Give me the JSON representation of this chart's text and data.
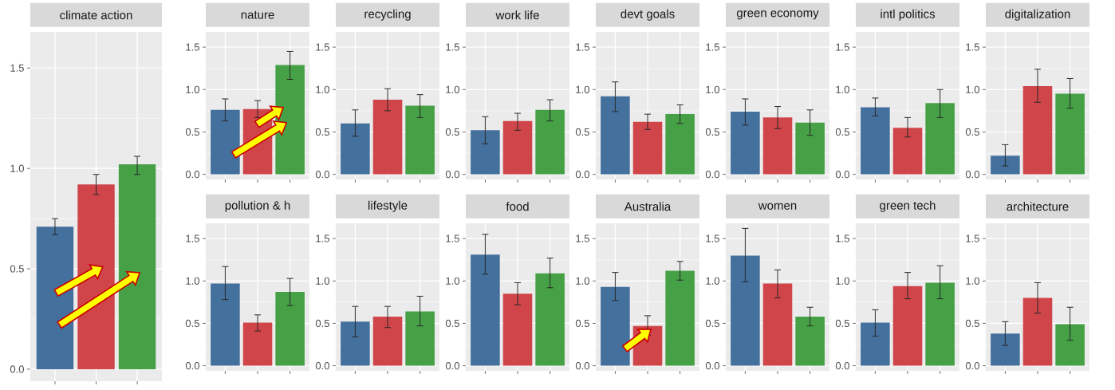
{
  "chart_data": [
    {
      "type": "bar",
      "title": "climate action",
      "categories": [
        null,
        null,
        null
      ],
      "values": [
        0.71,
        0.92,
        1.02
      ],
      "colors": [
        "#44709e",
        "#d0454a",
        "#46a046"
      ],
      "errors": [
        [
          0.67,
          0.75
        ],
        [
          0.87,
          0.97
        ],
        [
          0.97,
          1.06
        ]
      ],
      "ylim": [
        -0.06,
        1.68
      ],
      "yticks": [
        {
          "value": 0,
          "label": "0.0"
        },
        {
          "value": 0.5,
          "label": "0.5"
        },
        {
          "value": 1,
          "label": "1.0"
        },
        {
          "value": 1.5,
          "label": "1.5"
        }
      ],
      "grid": true,
      "tick_labels": "y"
    },
    {
      "type": "bar",
      "title": "nature",
      "categories": [
        null,
        null,
        null
      ],
      "values": [
        0.76,
        0.77,
        1.29
      ],
      "colors": [
        "#44709e",
        "#d0454a",
        "#46a046"
      ],
      "errors": [
        [
          0.63,
          0.89
        ],
        [
          0.67,
          0.87
        ],
        [
          1.12,
          1.45
        ]
      ],
      "ylim": [
        -0.06,
        1.68
      ],
      "yticks": [
        {
          "value": 0,
          "label": "0.0"
        },
        {
          "value": 0.5,
          "label": "0.5"
        },
        {
          "value": 1,
          "label": "1.0"
        },
        {
          "value": 1.5,
          "label": "1.5"
        }
      ],
      "grid": true,
      "tick_labels": "y"
    },
    {
      "type": "bar",
      "title": "recycling",
      "categories": [
        null,
        null,
        null
      ],
      "values": [
        0.6,
        0.88,
        0.81
      ],
      "colors": [
        "#44709e",
        "#d0454a",
        "#46a046"
      ],
      "errors": [
        [
          0.45,
          0.76
        ],
        [
          0.75,
          1.01
        ],
        [
          0.67,
          0.94
        ]
      ],
      "ylim": [
        -0.06,
        1.68
      ],
      "yticks": [
        {
          "value": 0,
          "label": "0.0"
        },
        {
          "value": 0.5,
          "label": "0.5"
        },
        {
          "value": 1,
          "label": "1.0"
        },
        {
          "value": 1.5,
          "label": "1.5"
        }
      ],
      "grid": true,
      "tick_labels": "y"
    },
    {
      "type": "bar",
      "title": "work life",
      "categories": [
        null,
        null,
        null
      ],
      "values": [
        0.52,
        0.63,
        0.76
      ],
      "colors": [
        "#44709e",
        "#d0454a",
        "#46a046"
      ],
      "errors": [
        [
          0.36,
          0.68
        ],
        [
          0.52,
          0.72
        ],
        [
          0.63,
          0.88
        ]
      ],
      "ylim": [
        -0.06,
        1.68
      ],
      "yticks": [
        {
          "value": 0,
          "label": "0.0"
        },
        {
          "value": 0.5,
          "label": "0.5"
        },
        {
          "value": 1,
          "label": "1.0"
        },
        {
          "value": 1.5,
          "label": "1.5"
        }
      ],
      "grid": true,
      "tick_labels": "y"
    },
    {
      "type": "bar",
      "title": "devt goals",
      "categories": [
        null,
        null,
        null
      ],
      "values": [
        0.92,
        0.62,
        0.71
      ],
      "colors": [
        "#44709e",
        "#d0454a",
        "#46a046"
      ],
      "errors": [
        [
          0.74,
          1.09
        ],
        [
          0.53,
          0.71
        ],
        [
          0.6,
          0.82
        ]
      ],
      "ylim": [
        -0.06,
        1.68
      ],
      "yticks": [
        {
          "value": 0,
          "label": "0.0"
        },
        {
          "value": 0.5,
          "label": "0.5"
        },
        {
          "value": 1,
          "label": "1.0"
        },
        {
          "value": 1.5,
          "label": "1.5"
        }
      ],
      "grid": true,
      "tick_labels": "y"
    },
    {
      "type": "bar",
      "title": "green economy",
      "categories": [
        null,
        null,
        null
      ],
      "values": [
        0.74,
        0.67,
        0.61
      ],
      "colors": [
        "#44709e",
        "#d0454a",
        "#46a046"
      ],
      "errors": [
        [
          0.58,
          0.89
        ],
        [
          0.54,
          0.8
        ],
        [
          0.46,
          0.76
        ]
      ],
      "ylim": [
        -0.06,
        1.68
      ],
      "yticks": [
        {
          "value": 0,
          "label": "0.0"
        },
        {
          "value": 0.5,
          "label": "0.5"
        },
        {
          "value": 1,
          "label": "1.0"
        },
        {
          "value": 1.5,
          "label": "1.5"
        }
      ],
      "grid": true,
      "tick_labels": "y"
    },
    {
      "type": "bar",
      "title": "intl politics",
      "categories": [
        null,
        null,
        null
      ],
      "values": [
        0.79,
        0.55,
        0.84
      ],
      "colors": [
        "#44709e",
        "#d0454a",
        "#46a046"
      ],
      "errors": [
        [
          0.69,
          0.9
        ],
        [
          0.44,
          0.67
        ],
        [
          0.67,
          1.0
        ]
      ],
      "ylim": [
        -0.06,
        1.68
      ],
      "yticks": [
        {
          "value": 0,
          "label": "0.0"
        },
        {
          "value": 0.5,
          "label": "0.5"
        },
        {
          "value": 1,
          "label": "1.0"
        },
        {
          "value": 1.5,
          "label": "1.5"
        }
      ],
      "grid": true,
      "tick_labels": "y"
    },
    {
      "type": "bar",
      "title": "digitalization",
      "categories": [
        null,
        null,
        null
      ],
      "values": [
        0.22,
        1.04,
        0.95
      ],
      "colors": [
        "#44709e",
        "#d0454a",
        "#46a046"
      ],
      "errors": [
        [
          0.1,
          0.35
        ],
        [
          0.85,
          1.24
        ],
        [
          0.78,
          1.13
        ]
      ],
      "ylim": [
        -0.06,
        1.68
      ],
      "yticks": [
        {
          "value": 0,
          "label": "0.0"
        },
        {
          "value": 0.5,
          "label": "0.5"
        },
        {
          "value": 1,
          "label": "1.0"
        },
        {
          "value": 1.5,
          "label": "1.5"
        }
      ],
      "grid": true,
      "tick_labels": "y"
    },
    {
      "type": "bar",
      "title": "pollution & h",
      "categories": [
        null,
        null,
        null
      ],
      "values": [
        0.97,
        0.51,
        0.87
      ],
      "colors": [
        "#44709e",
        "#d0454a",
        "#46a046"
      ],
      "errors": [
        [
          0.78,
          1.17
        ],
        [
          0.41,
          0.6
        ],
        [
          0.71,
          1.03
        ]
      ],
      "ylim": [
        -0.06,
        1.68
      ],
      "yticks": [
        {
          "value": 0,
          "label": "0.0"
        },
        {
          "value": 0.5,
          "label": "0.5"
        },
        {
          "value": 1,
          "label": "1.0"
        },
        {
          "value": 1.5,
          "label": "1.5"
        }
      ],
      "grid": true,
      "tick_labels": "y"
    },
    {
      "type": "bar",
      "title": "lifestyle",
      "categories": [
        null,
        null,
        null
      ],
      "values": [
        0.52,
        0.58,
        0.64
      ],
      "colors": [
        "#44709e",
        "#d0454a",
        "#46a046"
      ],
      "errors": [
        [
          0.34,
          0.7
        ],
        [
          0.45,
          0.7
        ],
        [
          0.47,
          0.82
        ]
      ],
      "ylim": [
        -0.06,
        1.68
      ],
      "yticks": [
        {
          "value": 0,
          "label": "0.0"
        },
        {
          "value": 0.5,
          "label": "0.5"
        },
        {
          "value": 1,
          "label": "1.0"
        },
        {
          "value": 1.5,
          "label": "1.5"
        }
      ],
      "grid": true,
      "tick_labels": "y"
    },
    {
      "type": "bar",
      "title": "food",
      "categories": [
        null,
        null,
        null
      ],
      "values": [
        1.31,
        0.85,
        1.09
      ],
      "colors": [
        "#44709e",
        "#d0454a",
        "#46a046"
      ],
      "errors": [
        [
          1.08,
          1.55
        ],
        [
          0.72,
          0.98
        ],
        [
          0.92,
          1.27
        ]
      ],
      "ylim": [
        -0.06,
        1.68
      ],
      "yticks": [
        {
          "value": 0,
          "label": "0.0"
        },
        {
          "value": 0.5,
          "label": "0.5"
        },
        {
          "value": 1,
          "label": "1.0"
        },
        {
          "value": 1.5,
          "label": "1.5"
        }
      ],
      "grid": true,
      "tick_labels": "y"
    },
    {
      "type": "bar",
      "title": "Australia",
      "categories": [
        null,
        null,
        null
      ],
      "values": [
        0.93,
        0.47,
        1.12
      ],
      "colors": [
        "#44709e",
        "#d0454a",
        "#46a046"
      ],
      "errors": [
        [
          0.77,
          1.1
        ],
        [
          0.36,
          0.59
        ],
        [
          1.01,
          1.23
        ]
      ],
      "ylim": [
        -0.06,
        1.68
      ],
      "yticks": [
        {
          "value": 0,
          "label": "0.0"
        },
        {
          "value": 0.5,
          "label": "0.5"
        },
        {
          "value": 1,
          "label": "1.0"
        },
        {
          "value": 1.5,
          "label": "1.5"
        }
      ],
      "grid": true,
      "tick_labels": "y"
    },
    {
      "type": "bar",
      "title": "women",
      "categories": [
        null,
        null,
        null
      ],
      "values": [
        1.3,
        0.97,
        0.58
      ],
      "colors": [
        "#44709e",
        "#d0454a",
        "#46a046"
      ],
      "errors": [
        [
          0.99,
          1.62
        ],
        [
          0.8,
          1.13
        ],
        [
          0.47,
          0.69
        ]
      ],
      "ylim": [
        -0.06,
        1.68
      ],
      "yticks": [
        {
          "value": 0,
          "label": "0.0"
        },
        {
          "value": 0.5,
          "label": "0.5"
        },
        {
          "value": 1,
          "label": "1.0"
        },
        {
          "value": 1.5,
          "label": "1.5"
        }
      ],
      "grid": true,
      "tick_labels": "y"
    },
    {
      "type": "bar",
      "title": "green tech",
      "categories": [
        null,
        null,
        null
      ],
      "values": [
        0.51,
        0.94,
        0.98
      ],
      "colors": [
        "#44709e",
        "#d0454a",
        "#46a046"
      ],
      "errors": [
        [
          0.35,
          0.66
        ],
        [
          0.79,
          1.1
        ],
        [
          0.79,
          1.18
        ]
      ],
      "ylim": [
        -0.06,
        1.68
      ],
      "yticks": [
        {
          "value": 0,
          "label": "0.0"
        },
        {
          "value": 0.5,
          "label": "0.5"
        },
        {
          "value": 1,
          "label": "1.0"
        },
        {
          "value": 1.5,
          "label": "1.5"
        }
      ],
      "grid": true,
      "tick_labels": "y"
    },
    {
      "type": "bar",
      "title": "architecture",
      "categories": [
        null,
        null,
        null
      ],
      "values": [
        0.38,
        0.8,
        0.49
      ],
      "colors": [
        "#44709e",
        "#d0454a",
        "#46a046"
      ],
      "errors": [
        [
          0.24,
          0.52
        ],
        [
          0.62,
          0.98
        ],
        [
          0.3,
          0.69
        ]
      ],
      "ylim": [
        -0.06,
        1.68
      ],
      "yticks": [
        {
          "value": 0,
          "label": "0.0"
        },
        {
          "value": 0.5,
          "label": "0.5"
        },
        {
          "value": 1,
          "label": "1.0"
        },
        {
          "value": 1.5,
          "label": "1.5"
        }
      ],
      "grid": true,
      "tick_labels": "y"
    }
  ]
}
